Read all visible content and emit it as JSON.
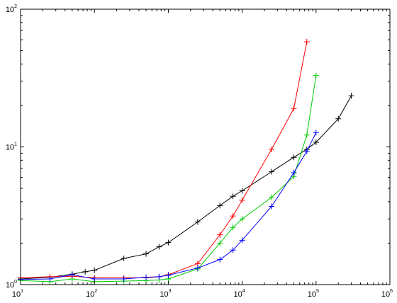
{
  "chart_data": {
    "type": "line",
    "xscale": "log",
    "yscale": "log",
    "xlim": [
      10,
      1000000
    ],
    "ylim": [
      1,
      100
    ],
    "grid": false,
    "title": "",
    "xlabel": "",
    "ylabel": "",
    "x_ticks": [
      {
        "base": "10",
        "exp": "1"
      },
      {
        "base": "10",
        "exp": "2"
      },
      {
        "base": "10",
        "exp": "3"
      },
      {
        "base": "10",
        "exp": "4"
      },
      {
        "base": "10",
        "exp": "5"
      },
      {
        "base": "10",
        "exp": "6"
      }
    ],
    "y_ticks": [
      {
        "base": "10",
        "exp": "0"
      },
      {
        "base": "10",
        "exp": "1"
      },
      {
        "base": "10",
        "exp": "2"
      }
    ],
    "series": [
      {
        "color": "#000000",
        "marker": "+",
        "points": [
          [
            10,
            1.1
          ],
          [
            25,
            1.13
          ],
          [
            50,
            1.19
          ],
          [
            75,
            1.24
          ],
          [
            100,
            1.27
          ],
          [
            250,
            1.55
          ],
          [
            500,
            1.67
          ],
          [
            750,
            1.88
          ],
          [
            1000,
            2.02
          ],
          [
            2500,
            2.85
          ],
          [
            5000,
            3.75
          ],
          [
            7500,
            4.38
          ],
          [
            10000,
            4.8
          ],
          [
            25000,
            6.6
          ],
          [
            50000,
            8.4
          ],
          [
            75000,
            9.6
          ],
          [
            100000,
            10.8
          ],
          [
            200000,
            16
          ],
          [
            300000,
            23.5
          ]
        ]
      },
      {
        "color": "#ff0000",
        "marker": "+",
        "points": [
          [
            10,
            1.12
          ],
          [
            25,
            1.14
          ],
          [
            50,
            1.15
          ],
          [
            100,
            1.12
          ],
          [
            250,
            1.12
          ],
          [
            500,
            1.12
          ],
          [
            750,
            1.14
          ],
          [
            1000,
            1.18
          ],
          [
            2500,
            1.42
          ],
          [
            5000,
            2.3
          ],
          [
            7500,
            3.15
          ],
          [
            10000,
            4.1
          ],
          [
            25000,
            9.6
          ],
          [
            50000,
            19
          ],
          [
            75000,
            58
          ]
        ]
      },
      {
        "color": "#00cc00",
        "marker": "+",
        "points": [
          [
            10,
            1.07
          ],
          [
            25,
            1.05
          ],
          [
            50,
            1.1
          ],
          [
            100,
            1.05
          ],
          [
            250,
            1.06
          ],
          [
            500,
            1.07
          ],
          [
            750,
            1.08
          ],
          [
            1000,
            1.1
          ],
          [
            2500,
            1.3
          ],
          [
            5000,
            2.0
          ],
          [
            7500,
            2.6
          ],
          [
            10000,
            3.0
          ],
          [
            25000,
            4.3
          ],
          [
            50000,
            6.1
          ],
          [
            75000,
            12.2
          ],
          [
            100000,
            33
          ]
        ]
      },
      {
        "color": "#0000ff",
        "marker": "+",
        "points": [
          [
            10,
            1.09
          ],
          [
            25,
            1.1
          ],
          [
            50,
            1.18
          ],
          [
            100,
            1.1
          ],
          [
            250,
            1.1
          ],
          [
            500,
            1.13
          ],
          [
            750,
            1.14
          ],
          [
            1000,
            1.17
          ],
          [
            2500,
            1.32
          ],
          [
            5000,
            1.52
          ],
          [
            7500,
            1.78
          ],
          [
            10000,
            2.1
          ],
          [
            25000,
            3.7
          ],
          [
            50000,
            6.5
          ],
          [
            75000,
            9.3
          ],
          [
            100000,
            12.7
          ]
        ]
      }
    ]
  }
}
